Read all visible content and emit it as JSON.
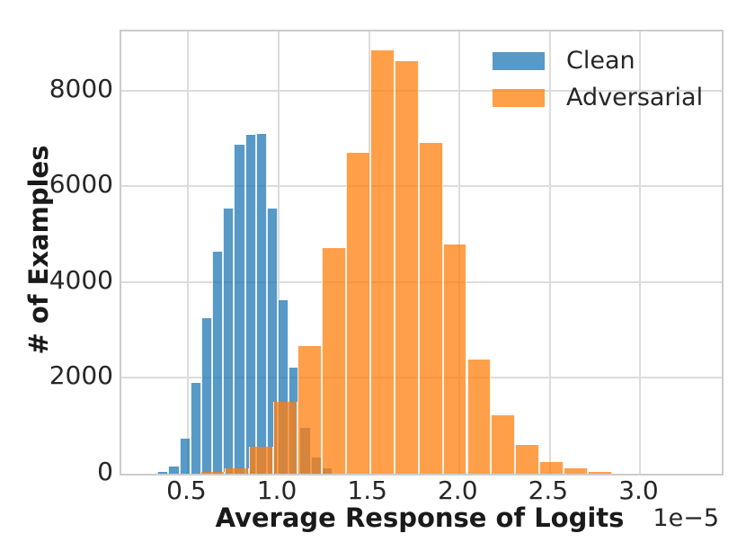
{
  "figure": {
    "y_axis": {
      "label": "# of Examples",
      "tick_labels": [
        "0",
        "2000",
        "4000",
        "6000",
        "8000"
      ],
      "tick_values": [
        0,
        2000,
        4000,
        6000,
        8000
      ],
      "range": [
        0,
        9230
      ]
    },
    "x_axis": {
      "label": "Average Response of Logits",
      "offset_text": "1e−5",
      "tick_labels": [
        "0.5",
        "1.0",
        "1.5",
        "2.0",
        "2.5",
        "3.0"
      ],
      "tick_values": [
        0.5,
        1.0,
        1.5,
        2.0,
        2.5,
        3.0
      ],
      "range": [
        0.13,
        3.45
      ]
    },
    "legend": {
      "items": [
        {
          "label": "Clean",
          "color": "#1f77b4"
        },
        {
          "label": "Adversarial",
          "color": "#ff7f0e"
        }
      ]
    }
  },
  "chart_data": {
    "type": "bar",
    "subtype": "overlapping-histograms",
    "title": "",
    "xlabel": "Average Response of Logits",
    "ylabel": "# of Examples",
    "x_unit_multiplier": "1e-5",
    "xlim": [
      0.13,
      3.45
    ],
    "ylim": [
      0,
      9230
    ],
    "grid": true,
    "legend_position": "upper right",
    "bar_alpha": 0.75,
    "series": [
      {
        "name": "Clean",
        "color": "#1f77b4",
        "bin_start": 0.33,
        "bin_width": 0.0605,
        "counts": [
          35,
          150,
          740,
          1900,
          3250,
          4630,
          5530,
          6860,
          7080,
          7100,
          5530,
          3630,
          2220,
          960,
          340,
          120
        ]
      },
      {
        "name": "Adversarial",
        "color": "#ff7f0e",
        "bin_start": 0.567,
        "bin_width": 0.134,
        "counts": [
          40,
          110,
          570,
          1500,
          2660,
          4700,
          6700,
          8830,
          8610,
          6900,
          4780,
          2390,
          1220,
          595,
          240,
          105,
          35
        ]
      }
    ]
  }
}
